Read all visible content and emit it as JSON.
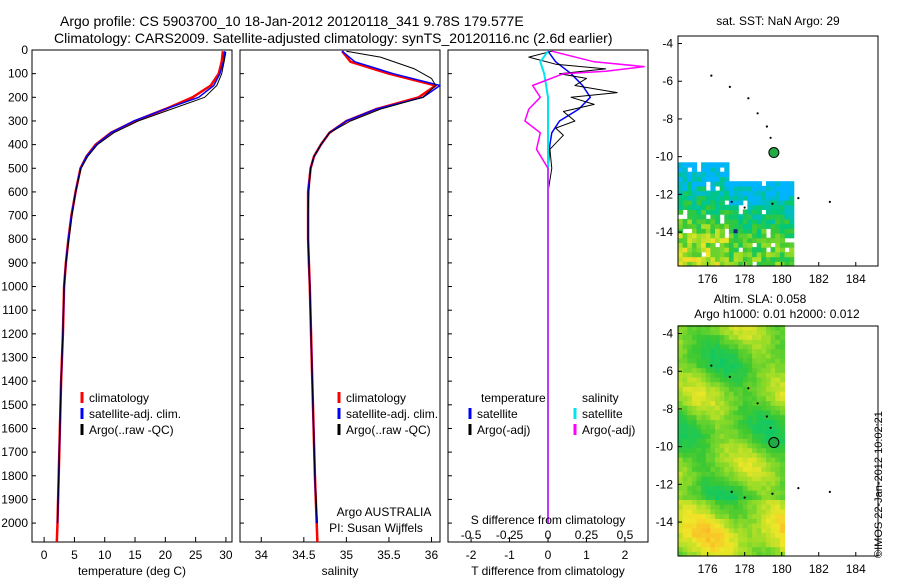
{
  "header": {
    "title_line1": "Argo profile: CS 5903700_10 18-Jan-2012 20120118_341 9.78S 179.577E",
    "title_line2": "Climatology: CARS2009. Satellite-adjusted climatology: synTS_20120116.nc (2.6d earlier)",
    "stamp": "©IMOS 22-Jan-2012 10:02:21"
  },
  "colors": {
    "climatology": "#ff0000",
    "satellite": "#0000ff",
    "argo": "#000000",
    "s_satellite": "#00e5ee",
    "s_argo": "#ff00ff"
  },
  "chart_data": [
    {
      "id": "temperature",
      "type": "line",
      "xlabel": "temperature (deg C)",
      "xlim": [
        -2,
        31
      ],
      "xticks": [
        0,
        5,
        10,
        15,
        20,
        25,
        30
      ],
      "ylim": [
        0,
        2080
      ],
      "yticks": [
        0,
        100,
        200,
        300,
        400,
        500,
        600,
        700,
        800,
        900,
        1000,
        1100,
        1200,
        1300,
        1400,
        1500,
        1600,
        1700,
        1800,
        1900,
        2000
      ],
      "legend": [
        "climatology",
        "satellite-adj. clim.",
        "Argo(..raw -QC)"
      ],
      "series": [
        {
          "name": "climatology",
          "color": "#ff0000",
          "width": 2.5,
          "points": [
            [
              29.5,
              5
            ],
            [
              29.3,
              50
            ],
            [
              28.8,
              100
            ],
            [
              27.5,
              150
            ],
            [
              24.5,
              200
            ],
            [
              20,
              250
            ],
            [
              15,
              300
            ],
            [
              11,
              350
            ],
            [
              8.5,
              400
            ],
            [
              7,
              450
            ],
            [
              6,
              500
            ],
            [
              5.2,
              600
            ],
            [
              4.5,
              700
            ],
            [
              4,
              800
            ],
            [
              3.6,
              900
            ],
            [
              3.3,
              1000
            ],
            [
              3.1,
              1200
            ],
            [
              2.8,
              1400
            ],
            [
              2.6,
              1600
            ],
            [
              2.4,
              1800
            ],
            [
              2.2,
              2000
            ],
            [
              2.1,
              2080
            ]
          ]
        },
        {
          "name": "satellite-adj. clim.",
          "color": "#0000ff",
          "width": 1.5,
          "points": [
            [
              29.8,
              5
            ],
            [
              29.6,
              50
            ],
            [
              29,
              100
            ],
            [
              28,
              150
            ],
            [
              25.5,
              200
            ],
            [
              20,
              250
            ],
            [
              14.8,
              300
            ],
            [
              11,
              350
            ],
            [
              8.6,
              400
            ],
            [
              7,
              450
            ],
            [
              6,
              500
            ],
            [
              5.2,
              600
            ],
            [
              4.5,
              700
            ],
            [
              4,
              800
            ],
            [
              3.6,
              900
            ],
            [
              3.3,
              1000
            ],
            [
              3.1,
              1200
            ],
            [
              2.8,
              1400
            ],
            [
              2.6,
              1600
            ],
            [
              2.4,
              1800
            ],
            [
              2.2,
              2000
            ]
          ]
        },
        {
          "name": "Argo(..raw -QC)",
          "color": "#000000",
          "width": 1,
          "points": [
            [
              30,
              8
            ],
            [
              29.7,
              50
            ],
            [
              29.3,
              100
            ],
            [
              28.5,
              150
            ],
            [
              26.5,
              200
            ],
            [
              21,
              250
            ],
            [
              15.5,
              300
            ],
            [
              11.5,
              350
            ],
            [
              8.8,
              400
            ],
            [
              7.2,
              450
            ],
            [
              6.1,
              500
            ],
            [
              5.2,
              600
            ],
            [
              4.6,
              700
            ],
            [
              4.1,
              800
            ],
            [
              3.6,
              900
            ],
            [
              3.3,
              1000
            ],
            [
              3.1,
              1200
            ],
            [
              2.8,
              1400
            ],
            [
              2.6,
              1600
            ],
            [
              2.4,
              1800
            ],
            [
              2.2,
              2000
            ]
          ]
        }
      ]
    },
    {
      "id": "salinity",
      "type": "line",
      "xlabel": "salinity",
      "xlim": [
        33.75,
        36.1
      ],
      "xticks": [
        34,
        34.5,
        35,
        35.5,
        36
      ],
      "ylim": [
        0,
        2080
      ],
      "legend": [
        "climatology",
        "satellite-adj. clim.",
        "Argo(..raw -QC)"
      ],
      "annotation": [
        "Argo AUSTRALIA",
        "PI: Susan Wijffels"
      ],
      "series": [
        {
          "name": "climatology",
          "color": "#ff0000",
          "width": 2.5,
          "points": [
            [
              34.95,
              5
            ],
            [
              35.05,
              50
            ],
            [
              35.5,
              100
            ],
            [
              36.05,
              150
            ],
            [
              35.85,
              200
            ],
            [
              35.35,
              250
            ],
            [
              35.0,
              300
            ],
            [
              34.8,
              350
            ],
            [
              34.7,
              400
            ],
            [
              34.62,
              450
            ],
            [
              34.58,
              500
            ],
            [
              34.55,
              600
            ],
            [
              34.55,
              700
            ],
            [
              34.55,
              800
            ],
            [
              34.56,
              900
            ],
            [
              34.57,
              1000
            ],
            [
              34.6,
              1400
            ],
            [
              34.63,
              1800
            ],
            [
              34.66,
              2080
            ]
          ]
        },
        {
          "name": "satellite-adj. clim.",
          "color": "#0000ff",
          "width": 1.5,
          "points": [
            [
              34.95,
              5
            ],
            [
              35.1,
              50
            ],
            [
              35.55,
              100
            ],
            [
              36.1,
              150
            ],
            [
              35.9,
              200
            ],
            [
              35.35,
              250
            ],
            [
              35.0,
              300
            ],
            [
              34.8,
              350
            ],
            [
              34.7,
              400
            ],
            [
              34.62,
              450
            ],
            [
              34.58,
              500
            ],
            [
              34.55,
              600
            ],
            [
              34.55,
              700
            ],
            [
              34.55,
              800
            ],
            [
              34.56,
              900
            ],
            [
              34.57,
              1000
            ],
            [
              34.6,
              1400
            ],
            [
              34.63,
              1800
            ],
            [
              34.65,
              2000
            ]
          ]
        },
        {
          "name": "Argo(..raw -QC)",
          "color": "#000000",
          "width": 1,
          "points": [
            [
              35.0,
              5
            ],
            [
              35.4,
              30
            ],
            [
              35.8,
              80
            ],
            [
              36.0,
              120
            ],
            [
              36.05,
              150
            ],
            [
              35.9,
              200
            ],
            [
              35.4,
              250
            ],
            [
              35.05,
              300
            ],
            [
              34.8,
              350
            ],
            [
              34.7,
              400
            ],
            [
              34.62,
              450
            ],
            [
              34.58,
              500
            ],
            [
              34.56,
              600
            ],
            [
              34.55,
              700
            ],
            [
              34.55,
              800
            ],
            [
              34.56,
              900
            ],
            [
              34.57,
              1000
            ],
            [
              34.6,
              1400
            ],
            [
              34.63,
              1800
            ],
            [
              34.66,
              2000
            ]
          ]
        }
      ]
    },
    {
      "id": "differences",
      "type": "line",
      "xlabel": "T difference from climatology",
      "xlabel_top": "S difference from climatology",
      "xlim": [
        -2.6,
        2.6
      ],
      "xticks": [
        -2,
        -1,
        0,
        1,
        2
      ],
      "xtick_labels": [
        "-2",
        "-1",
        "0",
        "1",
        "2"
      ],
      "s_ticks": [
        -0.5,
        -0.25,
        0,
        0.25,
        0.5
      ],
      "s_tick_labels": [
        "-0.5",
        "-0.25",
        "0",
        "0.25",
        "0.5"
      ],
      "ylim": [
        0,
        2080
      ],
      "legend_t": [
        "temperature",
        "satellite",
        "Argo(-adj)"
      ],
      "legend_s": [
        "salinity",
        "satellite",
        "Argo(-adj)"
      ],
      "series": [
        {
          "name": "T satellite",
          "color": "#0000ff",
          "width": 1.5,
          "points": [
            [
              0,
              5
            ],
            [
              0.2,
              50
            ],
            [
              0.6,
              100
            ],
            [
              0.9,
              150
            ],
            [
              1.1,
              200
            ],
            [
              0.8,
              250
            ],
            [
              0.3,
              300
            ],
            [
              0.1,
              350
            ],
            [
              0.05,
              400
            ],
            [
              0,
              500
            ],
            [
              0,
              2000
            ]
          ]
        },
        {
          "name": "T Argo(-adj)",
          "color": "#000000",
          "width": 1,
          "points": [
            [
              0.1,
              5
            ],
            [
              -0.5,
              30
            ],
            [
              0.2,
              60
            ],
            [
              1.5,
              80
            ],
            [
              0.3,
              100
            ],
            [
              1.0,
              120
            ],
            [
              0.7,
              150
            ],
            [
              1.8,
              180
            ],
            [
              0.6,
              200
            ],
            [
              1.2,
              230
            ],
            [
              0.4,
              260
            ],
            [
              0.7,
              300
            ],
            [
              0.2,
              330
            ],
            [
              0.4,
              360
            ],
            [
              0.05,
              420
            ],
            [
              0.1,
              500
            ],
            [
              0,
              600
            ],
            [
              0,
              2000
            ]
          ]
        },
        {
          "name": "S satellite",
          "color": "#00e5ee",
          "width": 2,
          "points": [
            [
              0,
              5
            ],
            [
              -0.2,
              50
            ],
            [
              -0.1,
              100
            ],
            [
              -0.05,
              150
            ],
            [
              0,
              200
            ],
            [
              0,
              500
            ],
            [
              0,
              2000
            ]
          ]
        },
        {
          "name": "S Argo(-adj)",
          "color": "#ff00ff",
          "width": 1.5,
          "points": [
            [
              0.1,
              5
            ],
            [
              1.2,
              50
            ],
            [
              2.5,
              70
            ],
            [
              1.5,
              90
            ],
            [
              0.4,
              100
            ],
            [
              -0.4,
              150
            ],
            [
              -0.2,
              200
            ],
            [
              -0.5,
              250
            ],
            [
              -0.6,
              300
            ],
            [
              -0.2,
              350
            ],
            [
              -0.3,
              420
            ],
            [
              0,
              500
            ],
            [
              0,
              2000
            ]
          ]
        }
      ]
    },
    {
      "id": "sst-map",
      "type": "heatmap",
      "title": "sat. SST: NaN  Argo: 29",
      "xlim": [
        174.4,
        185.2
      ],
      "ylim": [
        -15.8,
        -3.6
      ],
      "xticks": [
        176,
        178,
        180,
        182,
        184
      ],
      "yticks": [
        -4,
        -6,
        -8,
        -10,
        -12,
        -14
      ],
      "argo_position": [
        179.577,
        -9.78
      ]
    },
    {
      "id": "sla-map",
      "type": "heatmap",
      "title_line1": "Altim. SLA: 0.058",
      "title_line2": "Argo h1000: 0.01 h2000: 0.012",
      "xlim": [
        174.4,
        185.2
      ],
      "ylim": [
        -15.8,
        -3.6
      ],
      "xticks": [
        176,
        178,
        180,
        182,
        184
      ],
      "yticks": [
        -4,
        -6,
        -8,
        -10,
        -12,
        -14
      ],
      "argo_position": [
        179.577,
        -9.78
      ]
    }
  ]
}
